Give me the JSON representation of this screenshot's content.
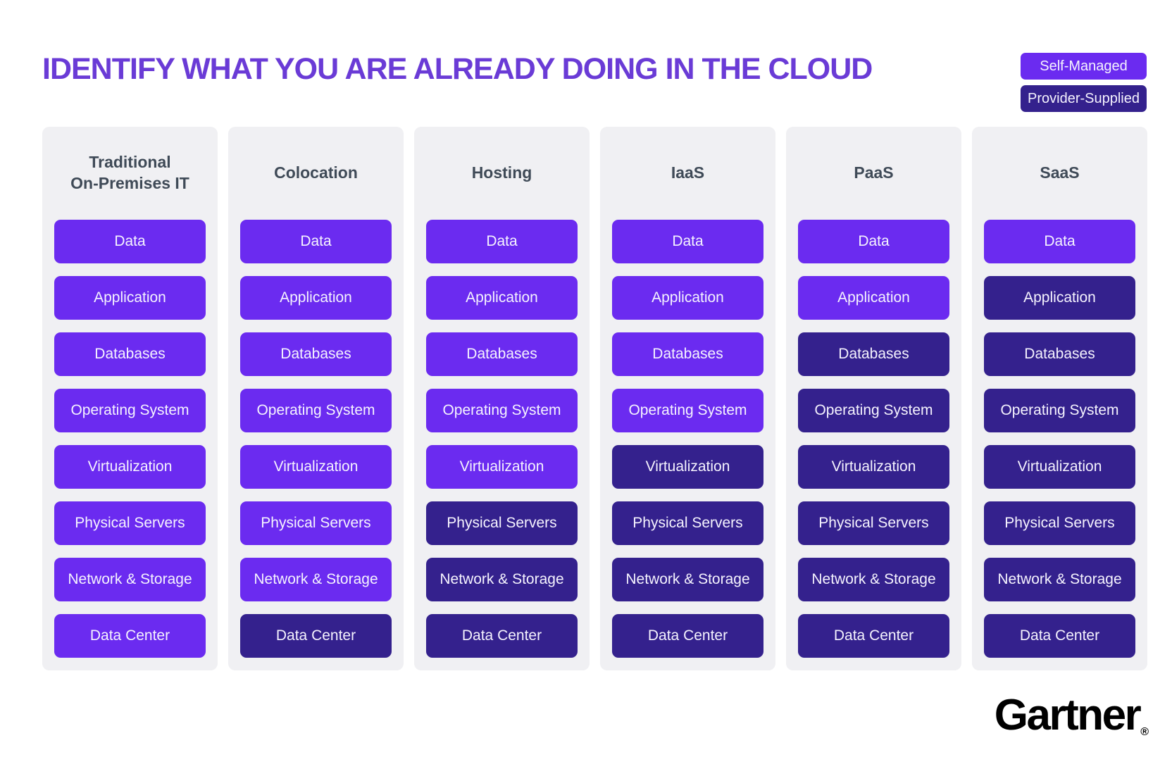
{
  "title": "IDENTIFY WHAT YOU ARE ALREADY DOING IN THE CLOUD",
  "legend": {
    "self_managed": "Self-Managed",
    "provider_supplied": "Provider-Supplied"
  },
  "colors": {
    "self_managed": "#6B2BF0",
    "provider_supplied": "#34218D",
    "title": "#6A3BD6",
    "header_text": "#3F4A57",
    "card_bg": "#F0F0F3",
    "cell_text": "#F5F3FE",
    "page_bg": "#FFFFFF",
    "brand_text": "#000000"
  },
  "rows": [
    "Data",
    "Application",
    "Databases",
    "Operating System",
    "Virtualization",
    "Physical Servers",
    "Network & Storage",
    "Data Center"
  ],
  "columns": [
    {
      "header": "Traditional\nOn-Premises IT",
      "cells": [
        "self",
        "self",
        "self",
        "self",
        "self",
        "self",
        "self",
        "self"
      ]
    },
    {
      "header": "Colocation",
      "cells": [
        "self",
        "self",
        "self",
        "self",
        "self",
        "self",
        "self",
        "provider"
      ]
    },
    {
      "header": "Hosting",
      "cells": [
        "self",
        "self",
        "self",
        "self",
        "self",
        "provider",
        "provider",
        "provider"
      ]
    },
    {
      "header": "IaaS",
      "cells": [
        "self",
        "self",
        "self",
        "self",
        "provider",
        "provider",
        "provider",
        "provider"
      ]
    },
    {
      "header": "PaaS",
      "cells": [
        "self",
        "self",
        "provider",
        "provider",
        "provider",
        "provider",
        "provider",
        "provider"
      ]
    },
    {
      "header": "SaaS",
      "cells": [
        "self",
        "provider",
        "provider",
        "provider",
        "provider",
        "provider",
        "provider",
        "provider"
      ]
    }
  ],
  "brand": {
    "name": "Gartner",
    "registered": "®"
  }
}
